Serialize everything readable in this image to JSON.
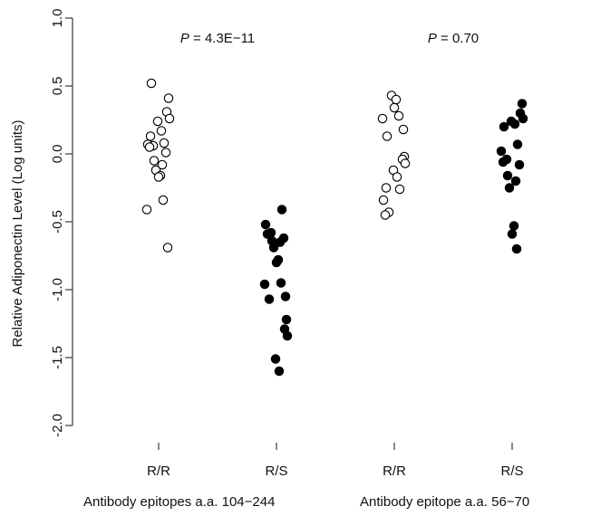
{
  "chart_data": {
    "type": "scatter",
    "ylabel": "Relative Adiponectin Level (Log units)",
    "ylim": [
      -2.0,
      1.0
    ],
    "yticks": [
      "1.0",
      "0.5",
      "0.0",
      "-0.5",
      "-1.0",
      "-1.5",
      "-2.0"
    ],
    "yticks_values": [
      1.0,
      0.5,
      0.0,
      -0.5,
      -1.0,
      -1.5,
      -2.0
    ],
    "categories": [
      "R/R",
      "R/S",
      "R/R",
      "R/S"
    ],
    "grid": false,
    "p_values": [
      {
        "prefix": "P",
        "text": " = 4.3E−11"
      },
      {
        "prefix": "P",
        "text": " = 0.70"
      }
    ],
    "group_labels": [
      "Antibody epitopes a.a. 104−244",
      "Antibody epitope a.a. 56−70"
    ],
    "series": [
      {
        "fill": "#ffffff",
        "values": [
          0.52,
          0.41,
          0.31,
          0.26,
          0.24,
          0.17,
          0.13,
          0.08,
          0.07,
          0.06,
          0.05,
          0.01,
          -0.05,
          -0.08,
          -0.12,
          -0.16,
          -0.17,
          -0.34,
          -0.41,
          -0.69
        ]
      },
      {
        "fill": "#000000",
        "values": [
          -0.41,
          -0.52,
          -0.58,
          -0.59,
          -0.62,
          -0.64,
          -0.65,
          -0.69,
          -0.78,
          -0.8,
          -0.95,
          -0.96,
          -1.05,
          -1.07,
          -1.22,
          -1.29,
          -1.34,
          -1.51,
          -1.6
        ]
      },
      {
        "fill": "#ffffff",
        "values": [
          0.43,
          0.4,
          0.34,
          0.28,
          0.26,
          0.18,
          0.13,
          -0.02,
          -0.04,
          -0.07,
          -0.12,
          -0.17,
          -0.25,
          -0.26,
          -0.34,
          -0.43,
          -0.45
        ]
      },
      {
        "fill": "#000000",
        "values": [
          0.37,
          0.3,
          0.26,
          0.24,
          0.22,
          0.2,
          0.07,
          0.02,
          -0.04,
          -0.06,
          -0.08,
          -0.16,
          -0.2,
          -0.25,
          -0.53,
          -0.59,
          -0.7
        ]
      }
    ]
  }
}
